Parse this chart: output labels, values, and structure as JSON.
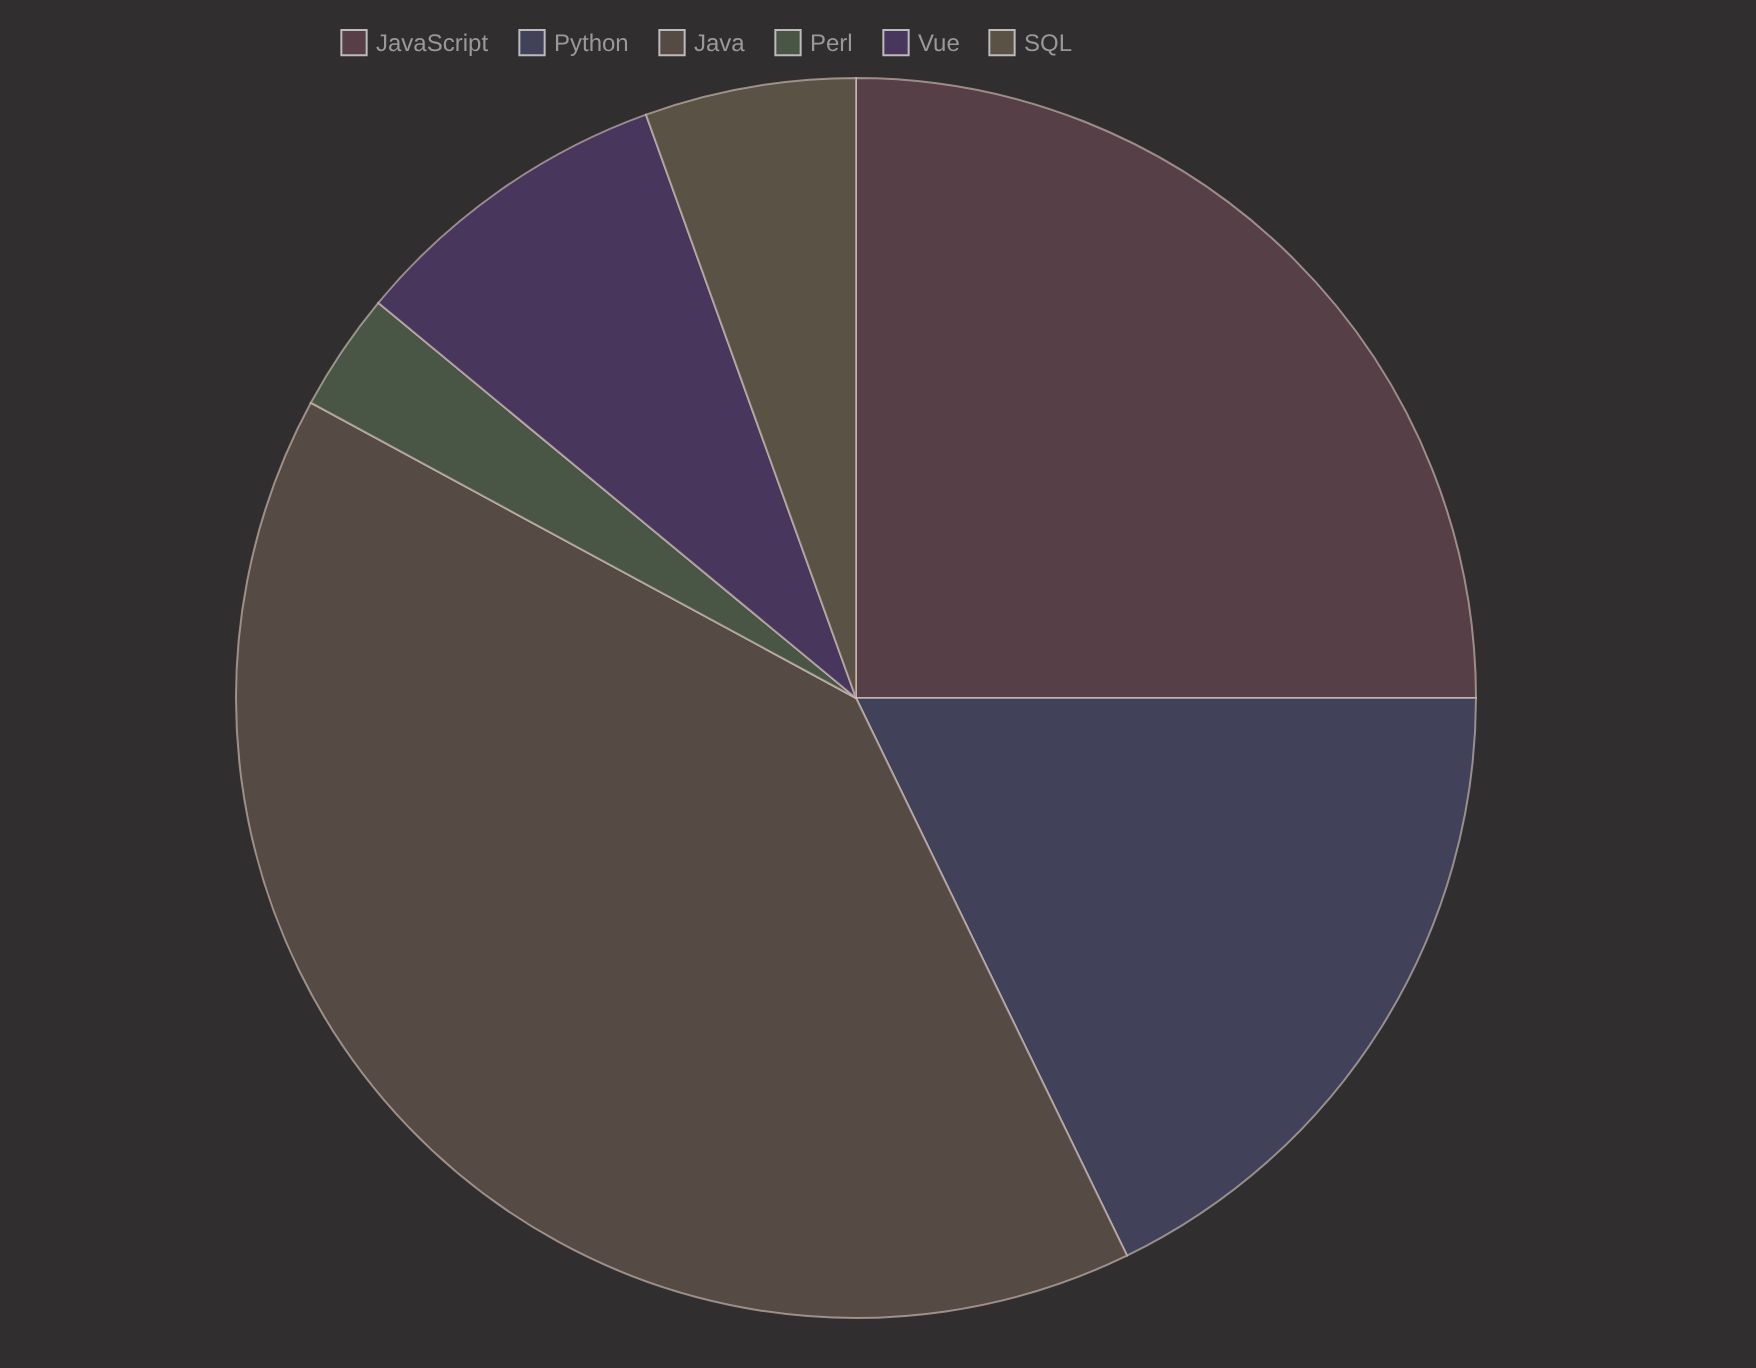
{
  "chart_data": {
    "type": "pie",
    "categories": [
      "JavaScript",
      "Python",
      "Java",
      "Perl",
      "Vue",
      "SQL"
    ],
    "values": [
      25,
      17.8,
      40.1,
      3.1,
      8.5,
      5.5
    ],
    "colors": [
      "#573f47",
      "#41425a",
      "#554a44",
      "#4a5645",
      "#48365d",
      "#5a5244"
    ],
    "legend": "top"
  }
}
